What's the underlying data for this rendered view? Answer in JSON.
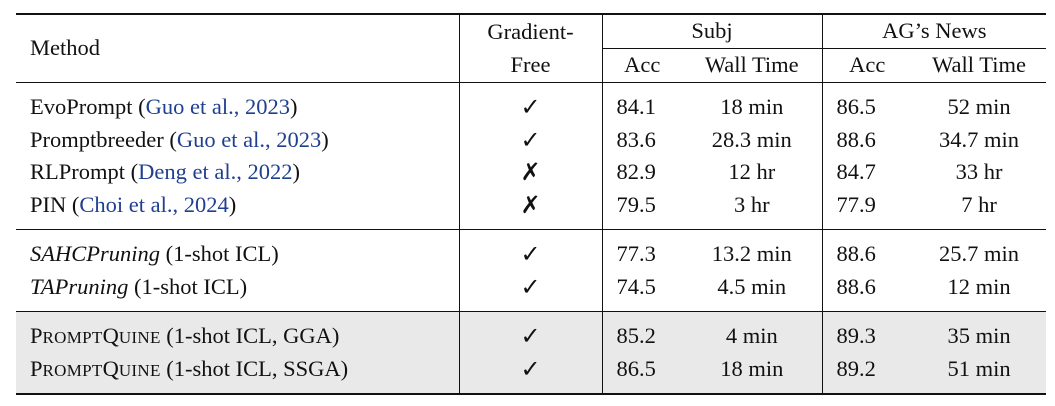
{
  "header": {
    "method": "Method",
    "gradient_line1": "Gradient-",
    "gradient_line2": "Free",
    "subj": "Subj",
    "ag_news": "AG’s News",
    "acc": "Acc",
    "wall_time": "Wall Time"
  },
  "symbols": {
    "check": "✓",
    "cross": "✗"
  },
  "groups": [
    {
      "rows": [
        {
          "name": "EvoPrompt",
          "cite_open": " (",
          "cite": "Guo et al., 2023",
          "cite_close": ")",
          "gradient_free": "✓",
          "subj_acc": "84.1",
          "subj_time": "18 min",
          "ag_acc": "86.5",
          "ag_time": "52 min"
        },
        {
          "name": "Promptbreeder",
          "cite_open": " (",
          "cite": "Guo et al., 2023",
          "cite_close": ")",
          "gradient_free": "✓",
          "subj_acc": "83.6",
          "subj_time": "28.3 min",
          "ag_acc": "88.6",
          "ag_time": "34.7 min"
        },
        {
          "name": "RLPrompt",
          "cite_open": " (",
          "cite": "Deng et al., 2022",
          "cite_close": ")",
          "gradient_free": "✗",
          "subj_acc": "82.9",
          "subj_time": "12 hr",
          "ag_acc": "84.7",
          "ag_time": "33 hr"
        },
        {
          "name": "PIN",
          "cite_open": " (",
          "cite": "Choi et al., 2024",
          "cite_close": ")",
          "gradient_free": "✗",
          "subj_acc": "79.5",
          "subj_time": "3 hr",
          "ag_acc": "77.9",
          "ag_time": "7 hr"
        }
      ]
    },
    {
      "rows": [
        {
          "name_italic": "SAHCPruning",
          "suffix": " (1-shot ICL)",
          "gradient_free": "✓",
          "subj_acc": "77.3",
          "subj_time": "13.2 min",
          "ag_acc": "88.6",
          "ag_time": "25.7 min"
        },
        {
          "name_italic": "TAPruning",
          "suffix": " (1-shot ICL)",
          "gradient_free": "✓",
          "subj_acc": "74.5",
          "subj_time": "4.5 min",
          "ag_acc": "88.6",
          "ag_time": "12 min"
        }
      ]
    },
    {
      "rows": [
        {
          "sc_p": "P",
          "sc_rompt": "ROMPT",
          "sc_q": "Q",
          "sc_uine": "UINE",
          "suffix": " (1-shot ICL, GGA)",
          "gradient_free": "✓",
          "subj_acc": "85.2",
          "subj_time": "4 min",
          "ag_acc": "89.3",
          "ag_time": "35 min"
        },
        {
          "sc_p": "P",
          "sc_rompt": "ROMPT",
          "sc_q": "Q",
          "sc_uine": "UINE",
          "suffix": " (1-shot ICL, SSGA)",
          "gradient_free": "✓",
          "subj_acc": "86.5",
          "subj_time": "18 min",
          "ag_acc": "89.2",
          "ag_time": "51 min"
        }
      ]
    }
  ]
}
